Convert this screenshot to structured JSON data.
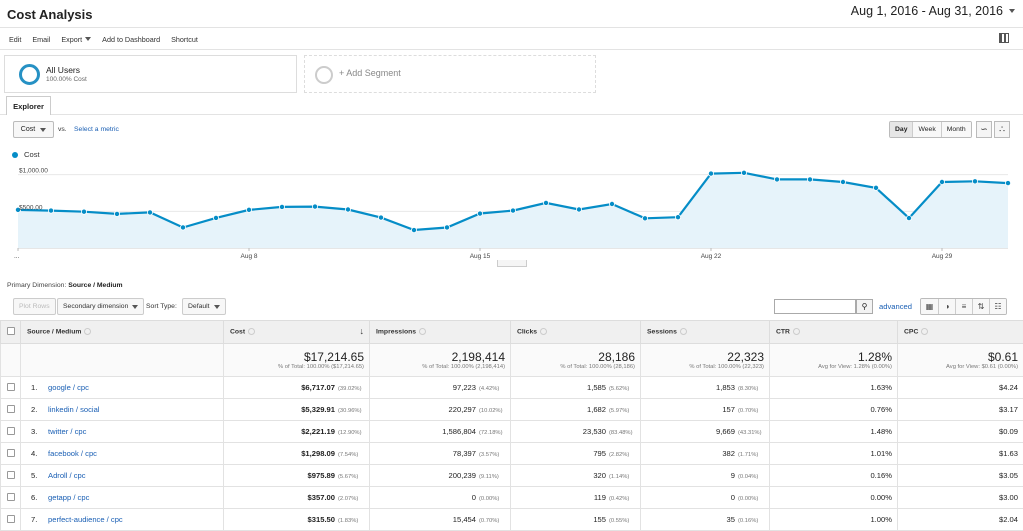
{
  "page": {
    "title": "Cost Analysis",
    "date_range": "Aug 1, 2016 - Aug 31, 2016"
  },
  "toolbar": {
    "edit": "Edit",
    "email": "Email",
    "export": "Export",
    "add_dashboard": "Add to Dashboard",
    "shortcut": "Shortcut"
  },
  "segments": {
    "all_users": {
      "name": "All Users",
      "sub": "100.00% Cost"
    },
    "add_segment": "+ Add Segment"
  },
  "explorer": {
    "tab": "Explorer",
    "metric": "Cost",
    "vs": "vs.",
    "select_metric": "Select a metric",
    "granularity": [
      "Day",
      "Week",
      "Month"
    ]
  },
  "colors": {
    "line": "#058dc7",
    "fill": "#e6f3fa",
    "link": "#1a5fb4"
  },
  "chart_data": {
    "type": "line",
    "series": [
      {
        "name": "Cost",
        "values": [
          520,
          510,
          495,
          465,
          485,
          280,
          410,
          520,
          560,
          565,
          525,
          415,
          245,
          280,
          470,
          510,
          615,
          525,
          600,
          405,
          420,
          1015,
          1025,
          935,
          935,
          900,
          820,
          408,
          900,
          910,
          885
        ]
      }
    ],
    "x_tick_labels": [
      "...",
      "Aug 8",
      "Aug 15",
      "Aug 22",
      "Aug 29"
    ],
    "y_tick_labels": [
      "$1,000.00",
      "$500.00"
    ],
    "ylim": [
      0,
      1200
    ],
    "grid": true
  },
  "table": {
    "primary_dimension_label": "Primary Dimension:",
    "primary_dimension_value": "Source / Medium",
    "plot_rows": "Plot Rows",
    "secondary_dimension": "Secondary dimension",
    "sort_type_label": "Sort Type:",
    "sort_type": "Default",
    "advanced": "advanced",
    "headers": [
      "Source / Medium",
      "Cost",
      "Impressions",
      "Clicks",
      "Sessions",
      "CTR",
      "CPC"
    ],
    "totals": [
      {
        "value": "$17,214.65",
        "sub": "% of Total: 100.00% ($17,214.65)"
      },
      {
        "value": "2,198,414",
        "sub": "% of Total: 100.00% (2,198,414)"
      },
      {
        "value": "28,186",
        "sub": "% of Total: 100.00% (28,186)"
      },
      {
        "value": "22,323",
        "sub": "% of Total: 100.00% (22,323)"
      },
      {
        "value": "1.28%",
        "sub": "Avg for View: 1.28% (0.00%)"
      },
      {
        "value": "$0.61",
        "sub": "Avg for View: $0.61 (0.00%)"
      }
    ],
    "rows": [
      {
        "idx": "1.",
        "src": "google / cpc",
        "cost": "$6,717.07",
        "cost_pct": "(39.02%)",
        "imp": "97,223",
        "imp_pct": "(4.42%)",
        "clicks": "1,585",
        "clicks_pct": "(5.62%)",
        "sess": "1,853",
        "sess_pct": "(8.30%)",
        "ctr": "1.63%",
        "cpc": "$4.24"
      },
      {
        "idx": "2.",
        "src": "linkedin / social",
        "cost": "$5,329.91",
        "cost_pct": "(30.96%)",
        "imp": "220,297",
        "imp_pct": "(10.02%)",
        "clicks": "1,682",
        "clicks_pct": "(5.97%)",
        "sess": "157",
        "sess_pct": "(0.70%)",
        "ctr": "0.76%",
        "cpc": "$3.17"
      },
      {
        "idx": "3.",
        "src": "twitter / cpc",
        "cost": "$2,221.19",
        "cost_pct": "(12.90%)",
        "imp": "1,586,804",
        "imp_pct": "(72.18%)",
        "clicks": "23,530",
        "clicks_pct": "(83.48%)",
        "sess": "9,669",
        "sess_pct": "(43.31%)",
        "ctr": "1.48%",
        "cpc": "$0.09"
      },
      {
        "idx": "4.",
        "src": "facebook / cpc",
        "cost": "$1,298.09",
        "cost_pct": "(7.54%)",
        "imp": "78,397",
        "imp_pct": "(3.57%)",
        "clicks": "795",
        "clicks_pct": "(2.82%)",
        "sess": "382",
        "sess_pct": "(1.71%)",
        "ctr": "1.01%",
        "cpc": "$1.63"
      },
      {
        "idx": "5.",
        "src": "Adroll / cpc",
        "cost": "$975.89",
        "cost_pct": "(5.67%)",
        "imp": "200,239",
        "imp_pct": "(9.11%)",
        "clicks": "320",
        "clicks_pct": "(1.14%)",
        "sess": "9",
        "sess_pct": "(0.04%)",
        "ctr": "0.16%",
        "cpc": "$3.05"
      },
      {
        "idx": "6.",
        "src": "getapp / cpc",
        "cost": "$357.00",
        "cost_pct": "(2.07%)",
        "imp": "0",
        "imp_pct": "(0.00%)",
        "clicks": "119",
        "clicks_pct": "(0.42%)",
        "sess": "0",
        "sess_pct": "(0.00%)",
        "ctr": "0.00%",
        "cpc": "$3.00"
      },
      {
        "idx": "7.",
        "src": "perfect-audience / cpc",
        "cost": "$315.50",
        "cost_pct": "(1.83%)",
        "imp": "15,454",
        "imp_pct": "(0.70%)",
        "clicks": "155",
        "clicks_pct": "(0.55%)",
        "sess": "35",
        "sess_pct": "(0.16%)",
        "ctr": "1.00%",
        "cpc": "$2.04"
      }
    ]
  }
}
